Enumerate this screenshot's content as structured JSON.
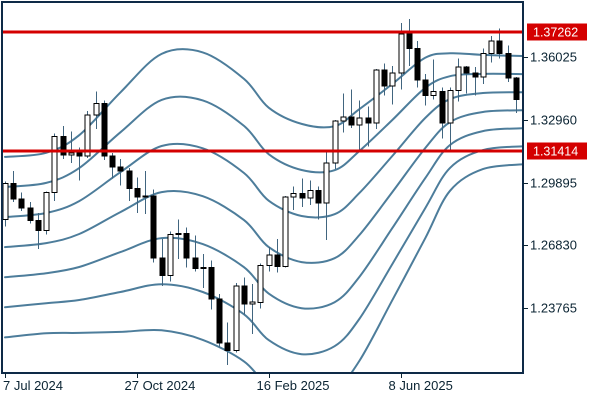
{
  "window": {
    "background": "#ffffff"
  },
  "colors": {
    "background": "#ffffff",
    "border": "#0e2a47",
    "band_line": "#4d7d9b",
    "wick": "#41657f",
    "candle_up_fill": "#ffffff",
    "candle_down_fill": "#000000",
    "candle_stroke": "#000000",
    "price_line": "#d40000",
    "price_label_bg": "#d40000",
    "price_label_text": "#ffffff",
    "axis_text": "#0b2433",
    "tick": "#0b2433"
  },
  "chart_data": {
    "type": "candlestick",
    "title": "",
    "xlabel": "",
    "ylabel": "",
    "grid": false,
    "legend": "none",
    "ylim": [
      1.20593,
      1.38714
    ],
    "y_axis": {
      "tick_labels": [
        "1.36025",
        "1.32960",
        "1.29895",
        "1.26830",
        "1.23765"
      ],
      "tick_values": [
        1.36025,
        1.3296,
        1.29895,
        1.2683,
        1.23765
      ]
    },
    "x_axis": {
      "tick_labels": [
        "7 Jul 2024",
        "27 Oct 2024",
        "16 Feb 2025",
        "8 Jun 2025"
      ],
      "tick_indices": [
        0,
        16,
        32,
        48
      ]
    },
    "price_lines": [
      {
        "label": "1.37262",
        "value": 1.37262
      },
      {
        "label": "1.31414",
        "value": 1.31414
      }
    ],
    "bands": {
      "name": "bollinger-bands",
      "deviations": [
        1,
        2,
        3
      ],
      "points": [
        [
          0,
          1.2674,
          0.0147
        ],
        [
          5,
          1.2694,
          0.0147
        ],
        [
          9,
          1.2738,
          0.0161
        ],
        [
          14,
          1.2845,
          0.0195
        ],
        [
          19,
          1.2943,
          0.0225
        ],
        [
          24,
          1.2923,
          0.0234
        ],
        [
          29,
          1.2806,
          0.023
        ],
        [
          32,
          1.2674,
          0.0227
        ],
        [
          36,
          1.2601,
          0.0225
        ],
        [
          40,
          1.262,
          0.0215
        ],
        [
          43,
          1.2733,
          0.0205
        ],
        [
          47,
          1.2943,
          0.0176
        ],
        [
          51,
          1.3158,
          0.0147
        ],
        [
          54,
          1.3285,
          0.0112
        ],
        [
          58,
          1.3334,
          0.0093
        ],
        [
          63,
          1.3343,
          0.0088
        ]
      ]
    },
    "candles": [
      [
        1.281,
        1.2995,
        1.2775,
        1.2985
      ],
      [
        1.2985,
        1.3045,
        1.2895,
        1.291
      ],
      [
        1.291,
        1.294,
        1.285,
        1.2865
      ],
      [
        1.2865,
        1.2895,
        1.279,
        1.2805
      ],
      [
        1.2805,
        1.284,
        1.2665,
        1.2755
      ],
      [
        1.2755,
        1.2945,
        1.2735,
        1.294
      ],
      [
        1.294,
        1.323,
        1.29,
        1.3215
      ],
      [
        1.3215,
        1.3265,
        1.3105,
        1.3125
      ],
      [
        1.3125,
        1.324,
        1.3085,
        1.3135
      ],
      [
        1.3135,
        1.316,
        1.3,
        1.312
      ],
      [
        1.312,
        1.334,
        1.311,
        1.332
      ],
      [
        1.332,
        1.3434,
        1.325,
        1.3375
      ],
      [
        1.3375,
        1.339,
        1.31,
        1.312
      ],
      [
        1.312,
        1.3135,
        1.301,
        1.3065
      ],
      [
        1.3065,
        1.3105,
        1.2975,
        1.3045
      ],
      [
        1.3045,
        1.306,
        1.29,
        1.296
      ],
      [
        1.296,
        1.3015,
        1.284,
        1.292
      ],
      [
        1.292,
        1.3045,
        1.2835,
        1.2925
      ],
      [
        1.2925,
        1.2955,
        1.26,
        1.262
      ],
      [
        1.262,
        1.2715,
        1.2485,
        1.2535
      ],
      [
        1.2535,
        1.275,
        1.2505,
        1.2735
      ],
      [
        1.2735,
        1.281,
        1.2615,
        1.274
      ],
      [
        1.274,
        1.277,
        1.2575,
        1.262
      ],
      [
        1.262,
        1.273,
        1.2555,
        1.257
      ],
      [
        1.257,
        1.264,
        1.2475,
        1.2575
      ],
      [
        1.2575,
        1.261,
        1.237,
        1.242
      ],
      [
        1.242,
        1.2445,
        1.2185,
        1.2205
      ],
      [
        1.2205,
        1.2305,
        1.2099,
        1.217
      ],
      [
        1.217,
        1.25,
        1.216,
        1.2485
      ],
      [
        1.2485,
        1.2525,
        1.2345,
        1.2395
      ],
      [
        1.2395,
        1.2495,
        1.225,
        1.2405
      ],
      [
        1.2405,
        1.2595,
        1.2375,
        1.2585
      ],
      [
        1.2585,
        1.2675,
        1.2555,
        1.2635
      ],
      [
        1.2635,
        1.2715,
        1.255,
        1.258
      ],
      [
        1.258,
        1.2925,
        1.2575,
        1.292
      ],
      [
        1.292,
        1.297,
        1.2855,
        1.2935
      ],
      [
        1.2935,
        1.301,
        1.287,
        1.2915
      ],
      [
        1.2915,
        1.3,
        1.288,
        1.295
      ],
      [
        1.295,
        1.297,
        1.281,
        1.289
      ],
      [
        1.289,
        1.3145,
        1.271,
        1.3085
      ],
      [
        1.3085,
        1.3295,
        1.3055,
        1.329
      ],
      [
        1.329,
        1.3425,
        1.3235,
        1.331
      ],
      [
        1.331,
        1.3445,
        1.3255,
        1.327
      ],
      [
        1.327,
        1.339,
        1.314,
        1.3305
      ],
      [
        1.3305,
        1.336,
        1.3165,
        1.328
      ],
      [
        1.328,
        1.3545,
        1.325,
        1.354
      ],
      [
        1.354,
        1.357,
        1.3415,
        1.346
      ],
      [
        1.346,
        1.356,
        1.337,
        1.3525
      ],
      [
        1.3525,
        1.377,
        1.3445,
        1.3715
      ],
      [
        1.3715,
        1.3789,
        1.356,
        1.3645
      ],
      [
        1.3645,
        1.368,
        1.3455,
        1.349
      ],
      [
        1.349,
        1.352,
        1.3365,
        1.3415
      ],
      [
        1.3415,
        1.359,
        1.3395,
        1.3435
      ],
      [
        1.3435,
        1.3455,
        1.3205,
        1.328
      ],
      [
        1.328,
        1.3455,
        1.314,
        1.344
      ],
      [
        1.344,
        1.3595,
        1.3385,
        1.3555
      ],
      [
        1.3555,
        1.356,
        1.3425,
        1.3525
      ],
      [
        1.3525,
        1.3555,
        1.3415,
        1.3505
      ],
      [
        1.3505,
        1.3645,
        1.347,
        1.362
      ],
      [
        1.362,
        1.3705,
        1.3575,
        1.368
      ],
      [
        1.368,
        1.3742,
        1.3595,
        1.362
      ],
      [
        1.362,
        1.366,
        1.348,
        1.35
      ],
      [
        1.35,
        1.3505,
        1.333,
        1.3395
      ]
    ]
  }
}
